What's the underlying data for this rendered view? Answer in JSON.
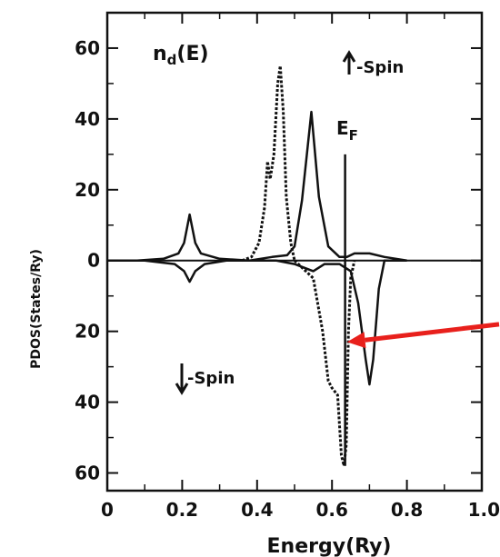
{
  "chart_data": {
    "type": "line",
    "title": "n_d(E)",
    "title_main": "n",
    "title_sub": "d",
    "title_args": "(E)",
    "xlabel": "Energy(Ry)",
    "ylabel": "PDOS(States/Ry)",
    "xlim": [
      0,
      1.0
    ],
    "ylim": [
      -65,
      70
    ],
    "x_ticks": [
      0,
      0.2,
      0.4,
      0.6,
      0.8,
      1.0
    ],
    "x_tick_labels": [
      "0",
      "0.2",
      "0.4",
      "0.6",
      "0.8",
      "1.0"
    ],
    "y_ticks": [
      60,
      40,
      20,
      0,
      -20,
      -40,
      -60
    ],
    "y_tick_labels": [
      "60",
      "40",
      "20",
      "0",
      "20",
      "40",
      "60"
    ],
    "grid": false,
    "annotations": {
      "spin_up": "-Spin",
      "spin_down": "-Spin",
      "fermi_main": "E",
      "fermi_sub": "F",
      "fermi_x": 0.635,
      "fermi_top": 30,
      "fermi_bottom": -58
    },
    "series": [
      {
        "style": "solid",
        "x": [
          0.0,
          0.08,
          0.15,
          0.19,
          0.205,
          0.22,
          0.235,
          0.25,
          0.3,
          0.38,
          0.44,
          0.48,
          0.5,
          0.52,
          0.545,
          0.565,
          0.59,
          0.62,
          0.64,
          0.66,
          0.7,
          0.74,
          0.8
        ],
        "y": [
          0,
          0,
          0.5,
          2,
          5,
          13,
          5,
          2,
          0.5,
          0,
          1,
          1.5,
          4,
          17,
          42,
          18,
          4,
          1,
          1,
          2,
          2,
          1,
          0
        ]
      },
      {
        "style": "solid",
        "x": [
          0.0,
          0.1,
          0.18,
          0.205,
          0.22,
          0.235,
          0.26,
          0.32,
          0.38,
          0.45,
          0.5,
          0.55,
          0.58,
          0.62,
          0.65,
          0.67,
          0.69,
          0.7,
          0.71,
          0.725,
          0.74,
          0.8
        ],
        "y": [
          0,
          0,
          -1,
          -3,
          -6,
          -3,
          -1,
          0,
          0,
          0,
          -1,
          -3,
          -1,
          -1,
          -3,
          -12,
          -28,
          -35,
          -28,
          -8,
          0,
          0
        ]
      },
      {
        "style": "dotted",
        "x": [
          0.36,
          0.385,
          0.405,
          0.42,
          0.428,
          0.435,
          0.445,
          0.455,
          0.462,
          0.47,
          0.478,
          0.49,
          0.5
        ],
        "y": [
          0,
          1,
          5,
          15,
          28,
          23,
          30,
          50,
          55,
          42,
          18,
          5,
          0
        ]
      },
      {
        "style": "dotted",
        "x": [
          0.5,
          0.55,
          0.575,
          0.59,
          0.6,
          0.615,
          0.625,
          0.632,
          0.638,
          0.644,
          0.65,
          0.66
        ],
        "y": [
          0,
          -5,
          -20,
          -34,
          -36,
          -38,
          -55,
          -58,
          -52,
          -20,
          -5,
          0
        ]
      }
    ],
    "arrow": {
      "x_from": 1.08,
      "y_from": -18,
      "x_to": 0.64,
      "y_to": -23,
      "color": "#e8201c"
    }
  }
}
